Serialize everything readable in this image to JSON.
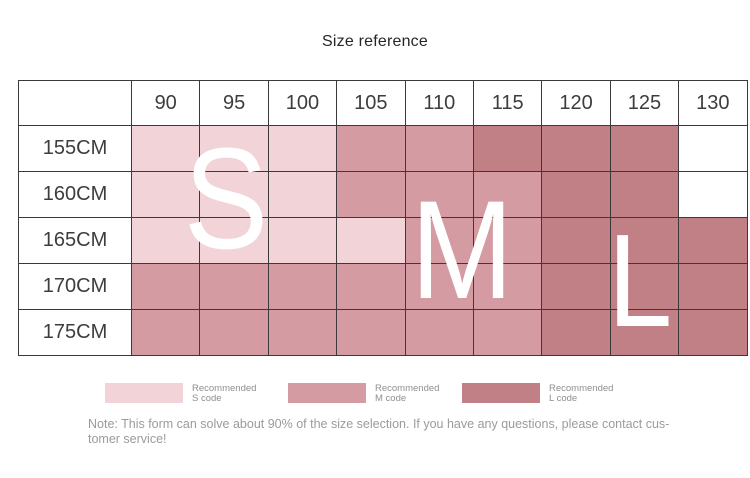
{
  "title": "Size reference",
  "table": {
    "corner": "",
    "col_headers": [
      "90",
      "95",
      "100",
      "105",
      "110",
      "115",
      "120",
      "125",
      "130"
    ],
    "row_headers": [
      "155CM",
      "160CM",
      "165CM",
      "170CM",
      "175CM"
    ],
    "zones": [
      [
        "S",
        "S",
        "S",
        "M",
        "M",
        "L",
        "L",
        "L",
        ""
      ],
      [
        "S",
        "S",
        "S",
        "M",
        "M",
        "M",
        "L",
        "L",
        ""
      ],
      [
        "S",
        "S",
        "S",
        "S",
        "M",
        "M",
        "L",
        "L",
        "L"
      ],
      [
        "M",
        "M",
        "M",
        "M",
        "M",
        "M",
        "L",
        "L",
        "L"
      ],
      [
        "M",
        "M",
        "M",
        "M",
        "M",
        "M",
        "L",
        "L",
        "L"
      ]
    ],
    "overlay_letters": [
      "S",
      "M",
      "L"
    ]
  },
  "colors": {
    "S": "#f1d3d8",
    "M": "#d49ba2",
    "L": "#c08086"
  },
  "legend": [
    {
      "code": "S",
      "line1": "Recommended",
      "line2": "S code"
    },
    {
      "code": "M",
      "line1": "Recommended",
      "line2": "M code"
    },
    {
      "code": "L",
      "line1": "Recommended",
      "line2": "L code"
    }
  ],
  "note_lines": [
    "Note: This form can solve about 90% of the size selection. If you have any questions, please contact cus-",
    "tomer service!"
  ]
}
